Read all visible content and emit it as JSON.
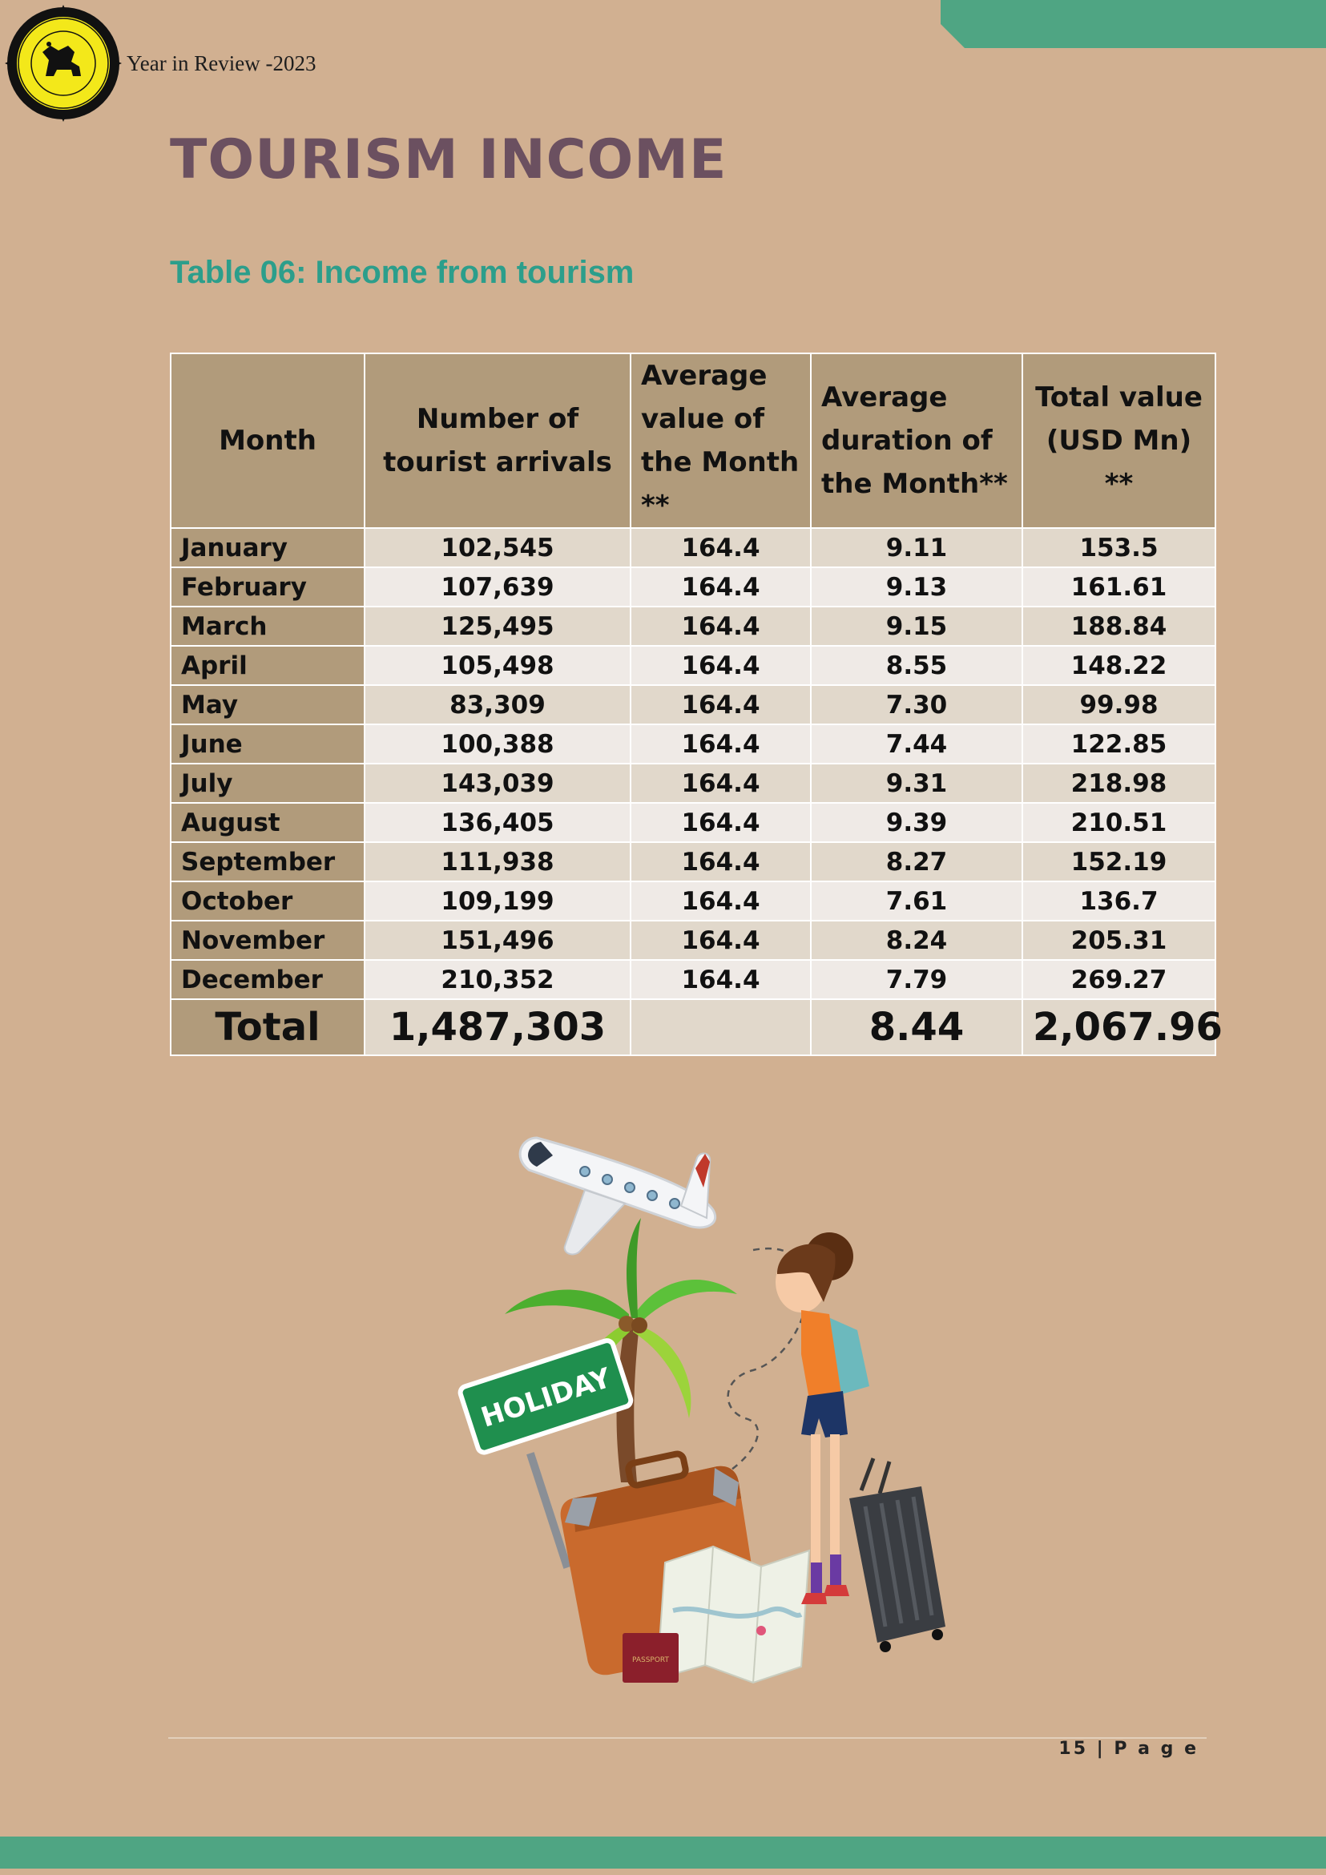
{
  "header": {
    "text": "Year in Review -2023"
  },
  "title": "TOURISM INCOME",
  "caption": "Table 06: Income from tourism",
  "table": {
    "headers": [
      "Month",
      "Number of tourist arrivals",
      "Average value of the Month **",
      "Average duration of the Month**",
      "Total value (USD Mn) **"
    ],
    "rows": [
      [
        "January",
        "102,545",
        "164.4",
        "9.11",
        "153.5"
      ],
      [
        "February",
        "107,639",
        "164.4",
        "9.13",
        "161.61"
      ],
      [
        "March",
        "125,495",
        "164.4",
        "9.15",
        "188.84"
      ],
      [
        "April",
        "105,498",
        "164.4",
        "8.55",
        "148.22"
      ],
      [
        "May",
        "83,309",
        "164.4",
        "7.30",
        "99.98"
      ],
      [
        "June",
        "100,388",
        "164.4",
        "7.44",
        "122.85"
      ],
      [
        "July",
        "143,039",
        "164.4",
        "9.31",
        "218.98"
      ],
      [
        "August",
        "136,405",
        "164.4",
        "9.39",
        "210.51"
      ],
      [
        "September",
        "111,938",
        "164.4",
        "8.27",
        "152.19"
      ],
      [
        "October",
        "109,199",
        "164.4",
        "7.61",
        "136.7"
      ],
      [
        "November",
        "151,496",
        "164.4",
        "8.24",
        "205.31"
      ],
      [
        "December",
        "210,352",
        "164.4",
        "7.79",
        "269.27"
      ]
    ],
    "total": [
      "Total",
      "1,487,303",
      "",
      "8.44",
      "2,067.96"
    ]
  },
  "illustration": {
    "sign_text": "HOLIDAY",
    "passport_text": "PASSPORT"
  },
  "footer": {
    "page_number": "15 | P a g e"
  },
  "colors": {
    "background": "#d1b091",
    "accent_green": "#4fa583",
    "title": "#6b5060",
    "caption": "#2c9e8b",
    "header_cell": "#b19b7b"
  }
}
